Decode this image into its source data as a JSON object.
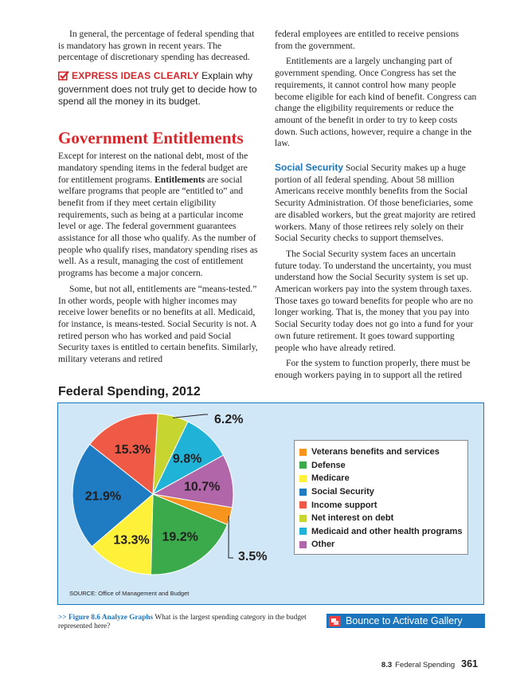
{
  "left": {
    "intro": "In general, the percentage of federal spending that is mandatory has grown in recent years. The percentage of discretionary spending has decreased.",
    "express_lead": "EXPRESS IDEAS CLEARLY",
    "express_text": "Explain why government does not truly get to decide how to spend all the money in its budget.",
    "heading": "Government Entitlements",
    "p1_a": "Except for interest on the national debt, most of the mandatory spending items in the federal budget are for entitlement programs.",
    "p1_term": "Entitlements",
    "p1_b": "are social welfare programs that people are “entitled to” and benefit from if they meet certain eligibility requirements, such as being at a particular income level or age. The federal government guarantees assistance for all those who qualify. As the number of people who qualify rises, mandatory spending rises as well. As a result, managing the cost of entitlement programs has become a major concern.",
    "p2": "Some, but not all, entitlements are “means-tested.” In other words, people with higher incomes may receive lower benefits or no benefits at all. Medicaid, for instance, is means-tested. Social Security is not. A retired person who has worked and paid Social Security taxes is entitled to certain benefits. Similarly, military veterans and retired"
  },
  "right": {
    "p0": "federal employees are entitled to receive pensions from the government.",
    "p1": "Entitlements are a largely unchanging part of government spending. Once Congress has set the requirements, it cannot control how many people become eligible for each kind of benefit. Congress can change the eligibility requirements or reduce the amount of the benefit in order to try to keep costs down. Such actions, however, require a change in the law.",
    "ss_head": "Social Security",
    "p2": "Social Security makes up a huge portion of all federal spending. About 58 million Americans receive monthly benefits from the Social Security Administration. Of those beneficiaries, some are disabled workers, but the great majority are retired workers. Many of those retirees rely solely on their Social Security checks to support themselves.",
    "p3": "The Social Security system faces an uncertain future today. To understand the uncertainty, you must understand how the Social Security system is set up. American workers pay into the system through taxes. Those taxes go toward benefits for people who are no longer working. That is, the money that you pay into Social Security today does not go into a fund for your own future retirement. It goes toward supporting people who have already retired.",
    "p4": "For the system to function properly, there must be enough workers paying in to support all the retired"
  },
  "chart_data": {
    "type": "pie",
    "title": "Federal Spending, 2012",
    "unit": "%",
    "slices": [
      {
        "name": "Net interest on debt",
        "value": 6.2,
        "label": "6.2%",
        "color": "#c6d530"
      },
      {
        "name": "Medicaid and other health programs",
        "value": 9.8,
        "label": "9.8%",
        "color": "#1fb3d8"
      },
      {
        "name": "Other",
        "value": 10.7,
        "label": "10.7%",
        "color": "#b066a9"
      },
      {
        "name": "Veterans benefits and services",
        "value": 3.5,
        "label": "3.5%",
        "color": "#f7941d"
      },
      {
        "name": "Defense",
        "value": 19.2,
        "label": "19.2%",
        "color": "#3aaa4b"
      },
      {
        "name": "Medicare",
        "value": 13.3,
        "label": "13.3%",
        "color": "#fff03a"
      },
      {
        "name": "Social Security",
        "value": 21.9,
        "label": "21.9%",
        "color": "#1f7bc2"
      },
      {
        "name": "Income support",
        "value": 15.3,
        "label": "15.3%",
        "color": "#ee5a45"
      }
    ],
    "legend": [
      {
        "label": "Veterans benefits and services",
        "color": "#f7941d"
      },
      {
        "label": "Defense",
        "color": "#3aaa4b"
      },
      {
        "label": "Medicare",
        "color": "#fff03a"
      },
      {
        "label": "Social Security",
        "color": "#1f7bc2"
      },
      {
        "label": "Income support",
        "color": "#ee5a45"
      },
      {
        "label": "Net interest on debt",
        "color": "#c6d530"
      },
      {
        "label": "Medicaid and other health programs",
        "color": "#1fb3d8"
      },
      {
        "label": "Other",
        "color": "#b066a9"
      }
    ],
    "legend_position": "right",
    "source": "SOURCE: Office of Management and Budget"
  },
  "caption": {
    "marker": ">>",
    "figure": "Figure 8.6 Analyze Graphs",
    "text": "What is the largest spending category in the budget represented here?"
  },
  "bounce_label": "Bounce to Activate Gallery",
  "footer": {
    "section": "8.3",
    "title": "Federal Spending",
    "page": "361"
  },
  "colors": {
    "accent_red": "#d7262b",
    "accent_blue": "#1b75bc",
    "panel": "#cfe7f6"
  }
}
